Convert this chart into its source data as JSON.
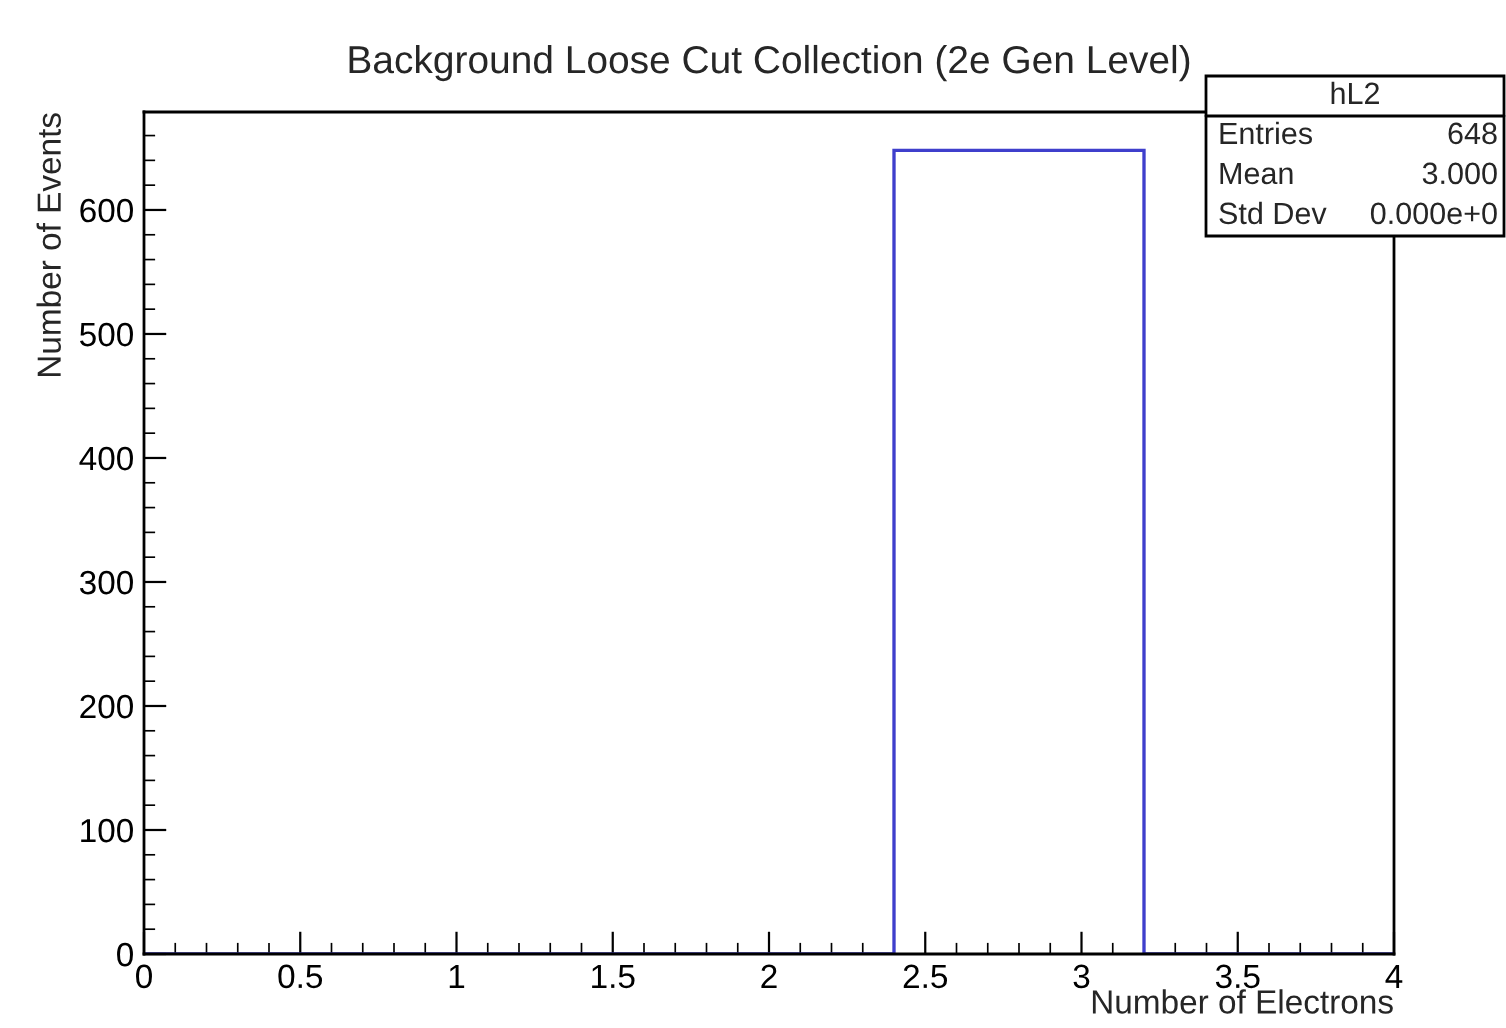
{
  "chart_data": {
    "type": "histogram",
    "title": "Background Loose Cut Collection (2e Gen Level)",
    "xlabel": "Number of Electrons",
    "ylabel": "Number of Events",
    "bins": [
      0,
      0.8,
      1.6,
      2.4,
      3.2,
      4.0
    ],
    "values": [
      0,
      0,
      0,
      648,
      0
    ],
    "color": "#3f3fcc",
    "xlim": [
      0,
      4
    ],
    "xticks": [
      0,
      0.5,
      1,
      1.5,
      2,
      2.5,
      3,
      3.5,
      4
    ],
    "ylim": [
      0,
      679
    ],
    "yticks": [
      0,
      100,
      200,
      300,
      400,
      500,
      600
    ],
    "grid": false,
    "legend": false,
    "annotations": [
      "hL2",
      "Entries",
      "648",
      "Mean",
      "3.000",
      "Std Dev",
      "0.000e+0"
    ]
  }
}
